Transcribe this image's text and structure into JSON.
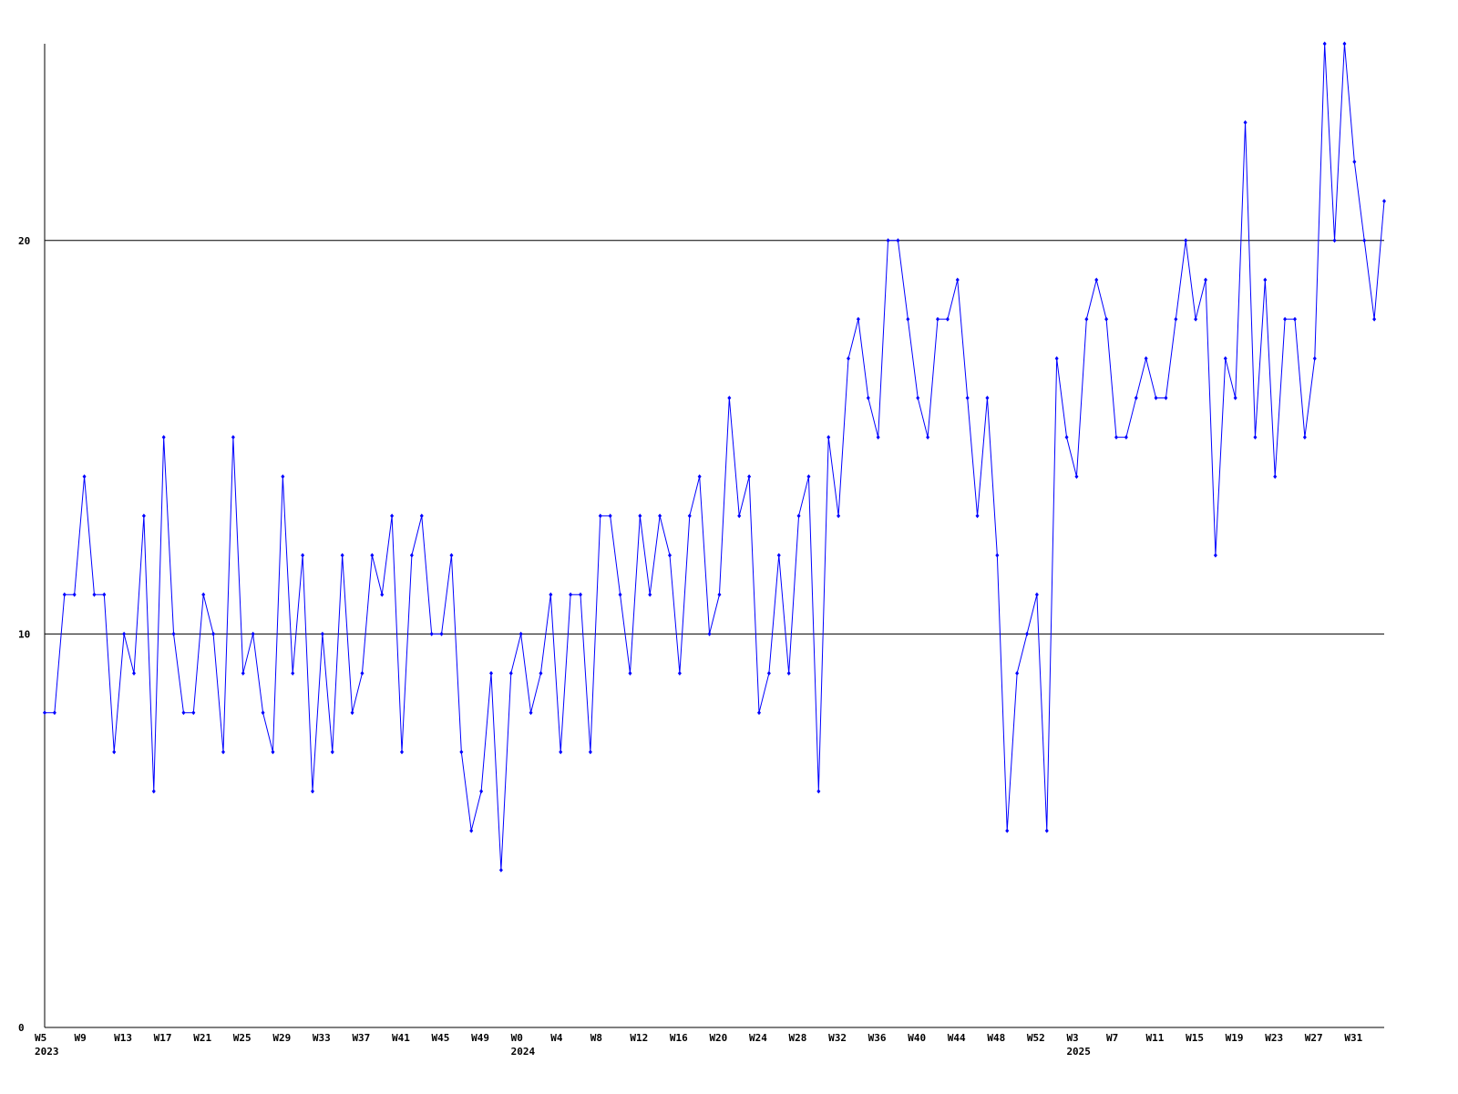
{
  "chart_data": {
    "type": "line",
    "categories": [
      "W5",
      null,
      null,
      null,
      "W9",
      null,
      null,
      null,
      "W13",
      null,
      null,
      null,
      "W17",
      null,
      null,
      null,
      "W21",
      null,
      null,
      null,
      "W25",
      null,
      null,
      null,
      "W29",
      null,
      null,
      null,
      "W33",
      null,
      null,
      null,
      "W37",
      null,
      null,
      null,
      "W41",
      null,
      null,
      null,
      "W45",
      null,
      null,
      null,
      "W49",
      null,
      null,
      null,
      "W0",
      null,
      null,
      null,
      "W4",
      null,
      null,
      null,
      "W8",
      null,
      null,
      null,
      "W12",
      null,
      null,
      null,
      "W16",
      null,
      null,
      null,
      "W20",
      null,
      null,
      null,
      "W24",
      null,
      null,
      null,
      "W28",
      null,
      null,
      null,
      "W32",
      null,
      null,
      null,
      "W36",
      null,
      null,
      null,
      "W40",
      null,
      null,
      null,
      "W44",
      null,
      null,
      null,
      "W48",
      null,
      null,
      null,
      "W52",
      null,
      null,
      null,
      "W3",
      null,
      null,
      null,
      "W7",
      null,
      null,
      null,
      "W11",
      null,
      null,
      null,
      "W15",
      null,
      null,
      null,
      "W19",
      null,
      null,
      null,
      "W23",
      null,
      null,
      null,
      "W27",
      null,
      null,
      null,
      "W31",
      null,
      null,
      null
    ],
    "years": [
      "2023",
      null,
      null,
      null,
      null,
      null,
      null,
      null,
      null,
      null,
      null,
      null,
      null,
      null,
      null,
      null,
      null,
      null,
      null,
      null,
      null,
      null,
      null,
      null,
      null,
      null,
      null,
      null,
      null,
      null,
      null,
      null,
      null,
      null,
      null,
      null,
      null,
      null,
      null,
      null,
      null,
      null,
      null,
      null,
      null,
      null,
      null,
      null,
      "2024",
      null,
      null,
      null,
      null,
      null,
      null,
      null,
      null,
      null,
      null,
      null,
      null,
      null,
      null,
      null,
      null,
      null,
      null,
      null,
      null,
      null,
      null,
      null,
      null,
      null,
      null,
      null,
      null,
      null,
      null,
      null,
      null,
      null,
      null,
      null,
      null,
      null,
      null,
      null,
      null,
      null,
      null,
      null,
      null,
      null,
      null,
      null,
      null,
      null,
      null,
      null,
      null,
      null,
      null,
      null,
      "2025",
      null,
      null,
      null,
      null,
      null,
      null,
      null,
      null,
      null,
      null,
      null,
      null,
      null,
      null,
      null,
      null,
      null,
      null,
      null,
      null,
      null,
      null,
      null,
      null,
      null,
      null,
      null,
      null,
      null,
      null
    ],
    "series": [
      {
        "color": "#0000ff",
        "values": [
          8,
          8,
          11,
          11,
          14,
          11,
          11,
          7,
          10,
          9,
          13,
          6,
          15,
          10,
          8,
          8,
          11,
          10,
          7,
          15,
          9,
          10,
          8,
          7,
          14,
          9,
          12,
          6,
          10,
          7,
          12,
          8,
          9,
          12,
          11,
          13,
          7,
          12,
          13,
          10,
          10,
          12,
          7,
          5,
          6,
          9,
          4,
          9,
          10,
          8,
          9,
          11,
          7,
          11,
          11,
          7,
          13,
          13,
          11,
          9,
          13,
          11,
          13,
          12,
          9,
          13,
          14,
          10,
          11,
          16,
          13,
          14,
          8,
          9,
          12,
          9,
          13,
          14,
          6,
          15,
          13,
          17,
          18,
          16,
          15,
          20,
          20,
          18,
          16,
          15,
          18,
          18,
          19,
          16,
          13,
          16,
          12,
          5,
          9,
          10,
          11,
          5,
          17,
          15,
          14,
          18,
          19,
          18,
          15,
          15,
          16,
          17,
          16,
          16,
          18,
          20,
          18,
          19,
          12,
          17,
          16,
          23,
          15,
          19,
          14,
          18,
          18,
          15,
          17,
          25,
          20,
          25,
          22,
          20,
          18,
          21
        ]
      }
    ],
    "ylim": [
      0,
      25
    ],
    "yticks": [
      0,
      10,
      20
    ],
    "grid": true
  }
}
